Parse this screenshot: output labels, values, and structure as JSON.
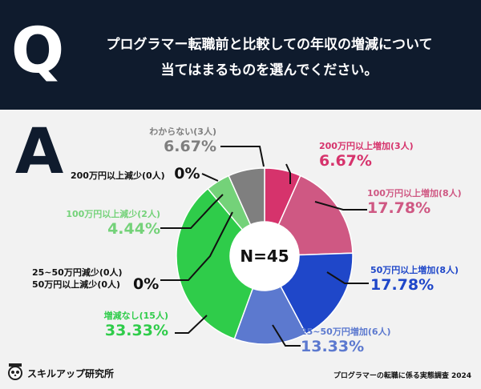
{
  "header": {
    "q_letter": "Q",
    "question_line1": "プログラマー転職前と比較しての年収の増減について",
    "question_line2": "当てはまるものを選んでください。"
  },
  "answer_letter": "A",
  "chart_data": {
    "type": "pie",
    "center_label": "N=45",
    "slices": [
      {
        "label": "200万円以上増加",
        "count": "(3人)",
        "percent": 6.67,
        "display": "6.67%",
        "color": "#d6336c"
      },
      {
        "label": "100万円以上増加",
        "count": "(8人)",
        "percent": 17.78,
        "display": "17.78%",
        "color": "#cf5883"
      },
      {
        "label": "50万円以上増加",
        "count": "(8人)",
        "percent": 17.78,
        "display": "17.78%",
        "color": "#1f47c9"
      },
      {
        "label": "25~50万円増加",
        "count": "(6人)",
        "percent": 13.33,
        "display": "13.33%",
        "color": "#5c79cf"
      },
      {
        "label": "増減なし",
        "count": "(15人)",
        "percent": 33.33,
        "display": "33.33%",
        "color": "#2fcc4a"
      },
      {
        "label": "50万円以上減少",
        "count": "(0人)",
        "percent": 0,
        "display": "0%",
        "color": "#3fae4f"
      },
      {
        "label": "25~50万円減少",
        "count": "(0人)",
        "percent": 0,
        "display": "0%",
        "color": "#3fae4f"
      },
      {
        "label": "100万円以上減少",
        "count": "(2人)",
        "percent": 4.44,
        "display": "4.44%",
        "color": "#74d279"
      },
      {
        "label": "200万円以上減少",
        "count": "(0人)",
        "percent": 0,
        "display": "0%",
        "color": "#3fae4f"
      },
      {
        "label": "わからない",
        "count": "(3人)",
        "percent": 6.67,
        "display": "6.67%",
        "color": "#7f7f7f"
      }
    ]
  },
  "footer": {
    "brand": "スキルアップ研究所",
    "source": "プログラマーの転職に係る実態調査 2024"
  }
}
